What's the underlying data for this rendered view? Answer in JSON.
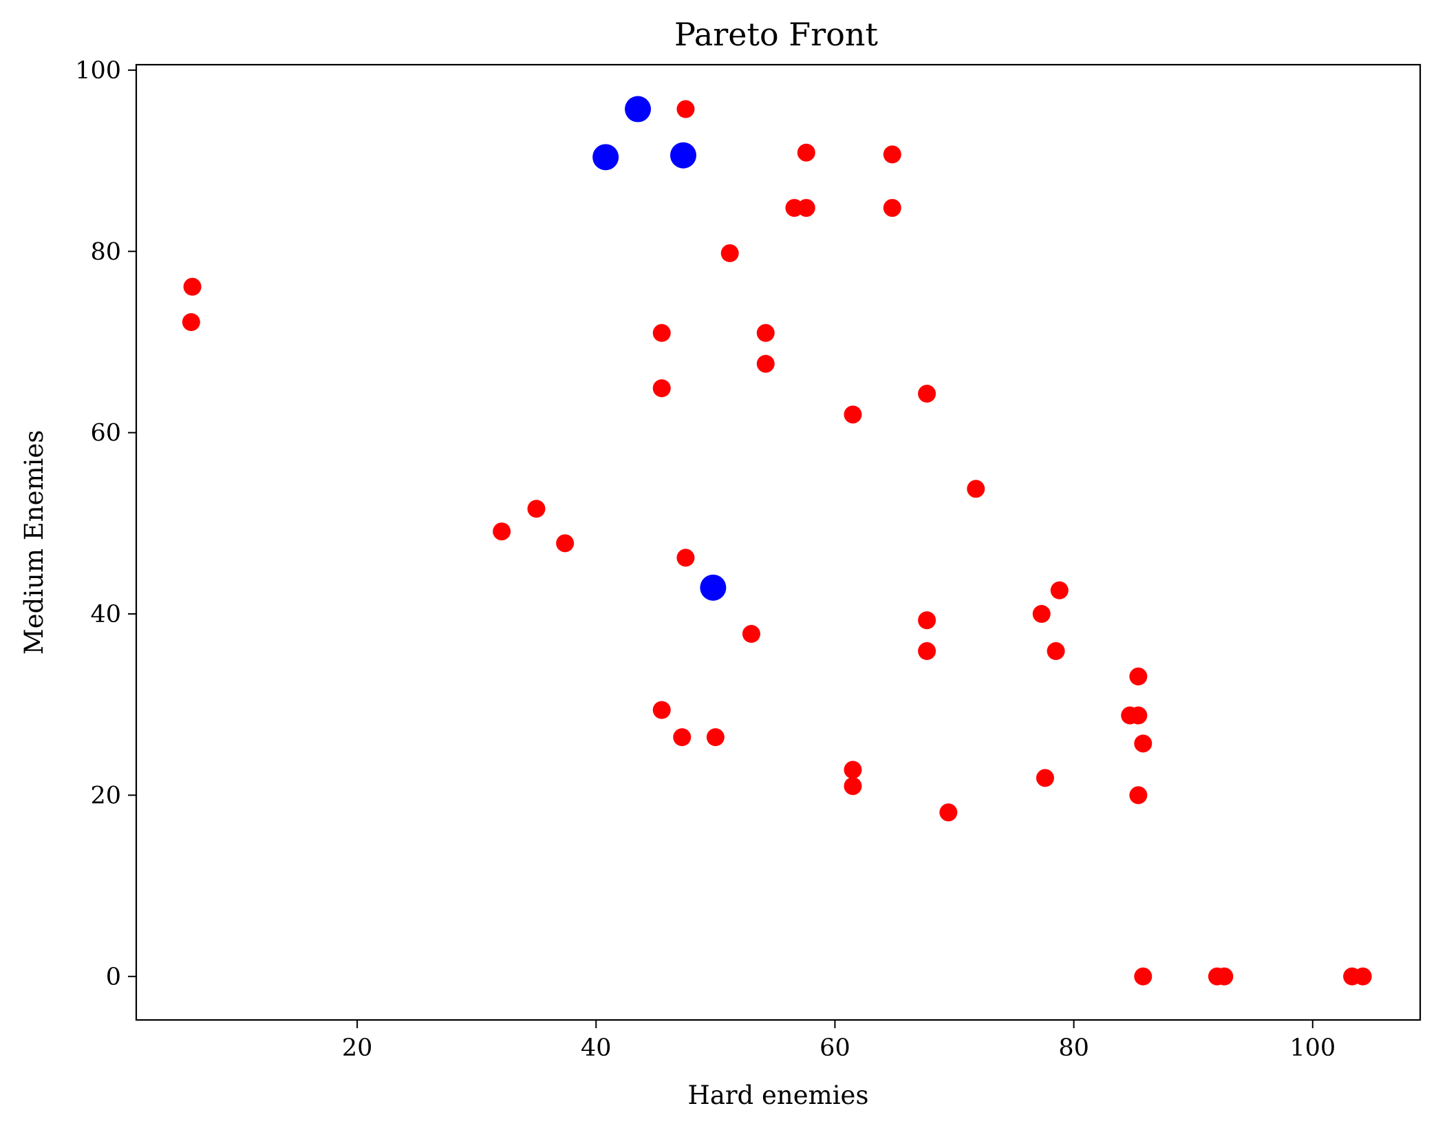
{
  "chart_data": {
    "type": "scatter",
    "title": "Pareto Front",
    "xlabel": "Hard enemies",
    "ylabel": "Medium Enemies",
    "xlim": [
      1.5,
      109
    ],
    "ylim": [
      -4.8,
      100.6
    ],
    "xticks": [
      20,
      40,
      60,
      80,
      100
    ],
    "yticks": [
      0,
      20,
      40,
      60,
      80,
      100
    ],
    "grid": false,
    "series": [
      {
        "color": "#ff0000",
        "size": "small",
        "points": [
          [
            6.2,
            76.1
          ],
          [
            6.1,
            72.2
          ],
          [
            47.5,
            95.7
          ],
          [
            57.6,
            90.9
          ],
          [
            64.8,
            90.7
          ],
          [
            56.6,
            84.8
          ],
          [
            57.6,
            84.8
          ],
          [
            64.8,
            84.8
          ],
          [
            51.2,
            79.8
          ],
          [
            45.5,
            71.0
          ],
          [
            54.2,
            71.0
          ],
          [
            54.2,
            67.6
          ],
          [
            45.5,
            64.9
          ],
          [
            67.7,
            64.3
          ],
          [
            61.5,
            62.0
          ],
          [
            71.8,
            53.8
          ],
          [
            35.0,
            51.6
          ],
          [
            32.1,
            49.1
          ],
          [
            37.4,
            47.8
          ],
          [
            47.5,
            46.2
          ],
          [
            78.8,
            42.6
          ],
          [
            77.3,
            40.0
          ],
          [
            67.7,
            39.3
          ],
          [
            53.0,
            37.8
          ],
          [
            67.7,
            35.9
          ],
          [
            78.5,
            35.9
          ],
          [
            85.4,
            33.1
          ],
          [
            45.5,
            29.4
          ],
          [
            84.7,
            28.8
          ],
          [
            85.4,
            28.8
          ],
          [
            47.2,
            26.4
          ],
          [
            50.0,
            26.4
          ],
          [
            85.8,
            25.7
          ],
          [
            61.5,
            22.8
          ],
          [
            77.6,
            21.9
          ],
          [
            61.5,
            21.0
          ],
          [
            85.4,
            20.0
          ],
          [
            69.5,
            18.1
          ],
          [
            85.8,
            0.0
          ],
          [
            92.0,
            0.0
          ],
          [
            92.6,
            0.0
          ],
          [
            103.3,
            0.0
          ],
          [
            104.2,
            0.0
          ]
        ]
      },
      {
        "color": "#0000ff",
        "size": "large",
        "points": [
          [
            43.5,
            95.7
          ],
          [
            40.8,
            90.4
          ],
          [
            47.3,
            90.6
          ],
          [
            49.8,
            42.9
          ]
        ]
      }
    ]
  }
}
